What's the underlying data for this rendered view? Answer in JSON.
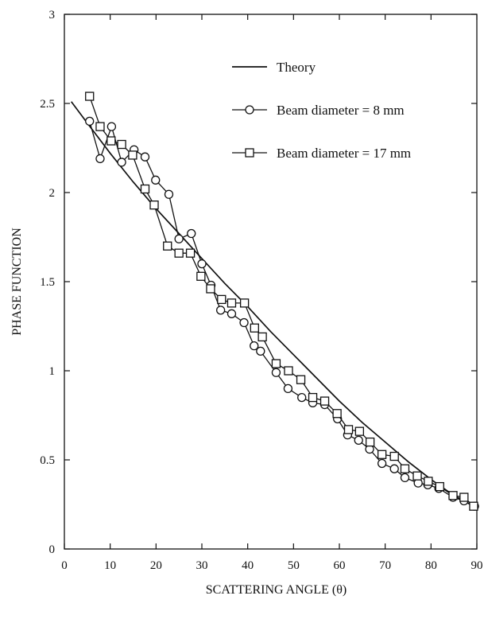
{
  "chart_data": {
    "type": "line",
    "xlabel": "SCATTERING ANGLE (θ)",
    "ylabel": "PHASE FUNCTION",
    "xlim": [
      0,
      90
    ],
    "ylim": [
      0,
      3
    ],
    "xticks": [
      "0",
      "10",
      "20",
      "30",
      "40",
      "50",
      "60",
      "70",
      "80",
      "90"
    ],
    "yticks": [
      "0",
      "0.5",
      "1",
      "1.5",
      "2",
      "2.5",
      "3"
    ],
    "grid": false,
    "legend_position": "top-right",
    "series": [
      {
        "name": "Theory",
        "marker": "none",
        "x": [
          1.5,
          5,
          10,
          15,
          20,
          25,
          30,
          35,
          40,
          45,
          50,
          55,
          60,
          65,
          70,
          75,
          80,
          85,
          90
        ],
        "y": [
          2.51,
          2.39,
          2.22,
          2.06,
          1.91,
          1.77,
          1.63,
          1.49,
          1.36,
          1.22,
          1.09,
          0.96,
          0.83,
          0.71,
          0.6,
          0.49,
          0.39,
          0.3,
          0.23
        ]
      },
      {
        "name": "Beam diameter = 8 mm",
        "marker": "circle",
        "x": [
          5.5,
          7.8,
          10.3,
          12.5,
          15.2,
          17.6,
          19.9,
          22.8,
          25.0,
          27.7,
          30.0,
          32.0,
          34.1,
          36.5,
          39.2,
          41.4,
          42.8,
          46.2,
          48.8,
          51.8,
          54.2,
          56.8,
          59.6,
          61.8,
          64.2,
          66.6,
          69.3,
          72.0,
          74.3,
          77.2,
          79.3,
          81.7,
          84.8,
          87.2,
          89.5
        ],
        "y": [
          2.4,
          2.19,
          2.37,
          2.17,
          2.24,
          2.2,
          2.07,
          1.99,
          1.74,
          1.77,
          1.6,
          1.48,
          1.34,
          1.32,
          1.27,
          1.14,
          1.11,
          0.99,
          0.9,
          0.85,
          0.82,
          0.81,
          0.73,
          0.64,
          0.61,
          0.56,
          0.48,
          0.45,
          0.4,
          0.37,
          0.36,
          0.34,
          0.29,
          0.27,
          0.24
        ]
      },
      {
        "name": "Beam diameter = 17 mm",
        "marker": "square",
        "x": [
          5.5,
          7.8,
          10.2,
          12.5,
          14.9,
          17.6,
          19.6,
          22.5,
          25.0,
          27.5,
          29.8,
          31.9,
          34.3,
          36.5,
          39.3,
          41.5,
          43.2,
          46.2,
          48.9,
          51.6,
          54.2,
          56.8,
          59.5,
          62.0,
          64.4,
          66.7,
          69.3,
          72.0,
          74.3,
          77.0,
          79.4,
          81.9,
          84.8,
          87.2,
          89.3
        ],
        "y": [
          2.54,
          2.37,
          2.29,
          2.27,
          2.21,
          2.02,
          1.93,
          1.7,
          1.66,
          1.66,
          1.53,
          1.46,
          1.4,
          1.38,
          1.38,
          1.24,
          1.19,
          1.04,
          1.0,
          0.95,
          0.85,
          0.83,
          0.76,
          0.67,
          0.66,
          0.6,
          0.53,
          0.52,
          0.45,
          0.41,
          0.38,
          0.35,
          0.3,
          0.29,
          0.24
        ]
      }
    ]
  }
}
